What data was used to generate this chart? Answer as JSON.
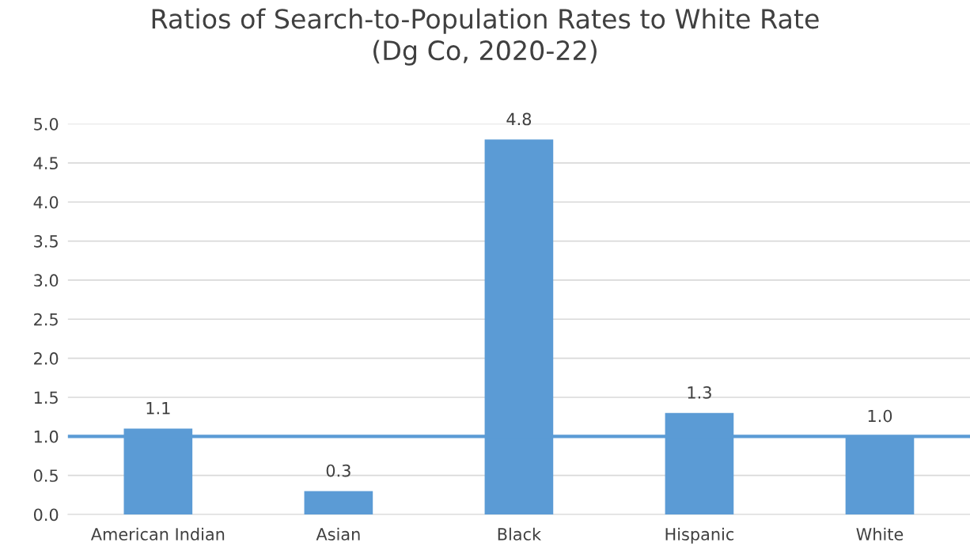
{
  "chart_data": {
    "type": "bar",
    "title": "Ratios of Search-to-Population Rates to White Rate\n(Dg Co, 2020-22)",
    "categories": [
      "American Indian",
      "Asian",
      "Black",
      "Hispanic",
      "White"
    ],
    "values": [
      1.1,
      0.3,
      4.8,
      1.3,
      1.0
    ],
    "color": "#5b9bd5",
    "value_labels": [
      "1.1",
      "0.3",
      "4.8",
      "1.3",
      "1.0"
    ],
    "ylim": [
      0,
      5
    ],
    "yticks": [
      {
        "value": 0,
        "label": "0.0"
      },
      {
        "value": 0.5,
        "label": "0.5"
      },
      {
        "value": 1,
        "label": "1.0"
      },
      {
        "value": 1.5,
        "label": "1.5"
      },
      {
        "value": 2,
        "label": "2.0"
      },
      {
        "value": 2.5,
        "label": "2.5"
      },
      {
        "value": 3,
        "label": "3.0"
      },
      {
        "value": 3.5,
        "label": "3.5"
      },
      {
        "value": 4,
        "label": "4.0"
      },
      {
        "value": 4.5,
        "label": "4.5"
      },
      {
        "value": 5,
        "label": "5.0"
      }
    ],
    "grid": "y",
    "ref_lines": [
      {
        "axis": "y",
        "value": 1,
        "label": null,
        "color": "#5b9bd5"
      }
    ]
  }
}
